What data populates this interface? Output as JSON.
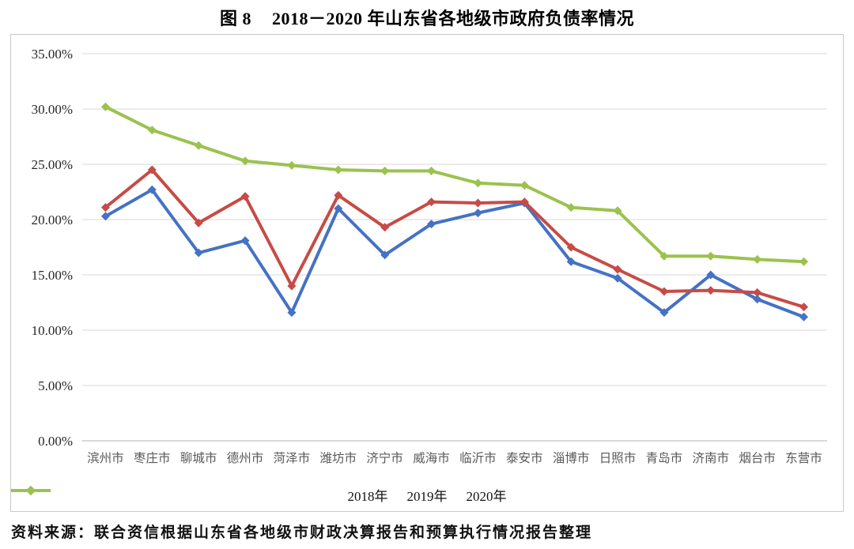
{
  "title": {
    "figure_no": "图 8",
    "text": "2018－2020 年山东省各地级市政府负债率情况"
  },
  "source": "资料来源：联合资信根据山东省各地级市财政决算报告和预算执行情况报告整理",
  "colors": {
    "series_2018": "#4472C4",
    "series_2019": "#C74B46",
    "series_2020": "#9BC24E",
    "gridline": "#d9d9d9",
    "axis_line": "#b3b3b3",
    "x_tick_text": "#595959",
    "y_tick_text": "#262626"
  },
  "chart_data": {
    "type": "line",
    "title": "图 8 2018－2020 年山东省各地级市政府负债率情况",
    "categories": [
      "滨州市",
      "枣庄市",
      "聊城市",
      "德州市",
      "菏泽市",
      "潍坊市",
      "济宁市",
      "威海市",
      "临沂市",
      "泰安市",
      "淄博市",
      "日照市",
      "青岛市",
      "济南市",
      "烟台市",
      "东营市"
    ],
    "series": [
      {
        "name": "2018年",
        "color": "#4472C4",
        "values": [
          20.3,
          22.7,
          17.0,
          18.1,
          11.6,
          21.0,
          16.8,
          19.6,
          20.6,
          21.5,
          16.2,
          14.7,
          11.6,
          15.0,
          12.8,
          11.2
        ]
      },
      {
        "name": "2019年",
        "color": "#C74B46",
        "values": [
          21.1,
          24.5,
          19.7,
          22.1,
          14.0,
          22.2,
          19.3,
          21.6,
          21.5,
          21.6,
          17.5,
          15.5,
          13.5,
          13.6,
          13.4,
          12.1
        ]
      },
      {
        "name": "2020年",
        "color": "#9BC24E",
        "values": [
          30.2,
          28.1,
          26.7,
          25.3,
          24.9,
          24.5,
          24.4,
          24.4,
          23.3,
          23.1,
          21.1,
          20.8,
          16.7,
          16.7,
          16.4,
          16.2
        ]
      }
    ],
    "xlabel": "",
    "ylabel": "",
    "ylim": [
      0,
      35
    ],
    "ytick_values": [
      35,
      30,
      25,
      20,
      15,
      10,
      5,
      0
    ],
    "ytick_labels": [
      "35.00%",
      "30.00%",
      "25.00%",
      "20.00%",
      "15.00%",
      "10.00%",
      "5.00%",
      "0.00%"
    ],
    "grid": true,
    "legend_position": "bottom",
    "marker": "diamond"
  }
}
